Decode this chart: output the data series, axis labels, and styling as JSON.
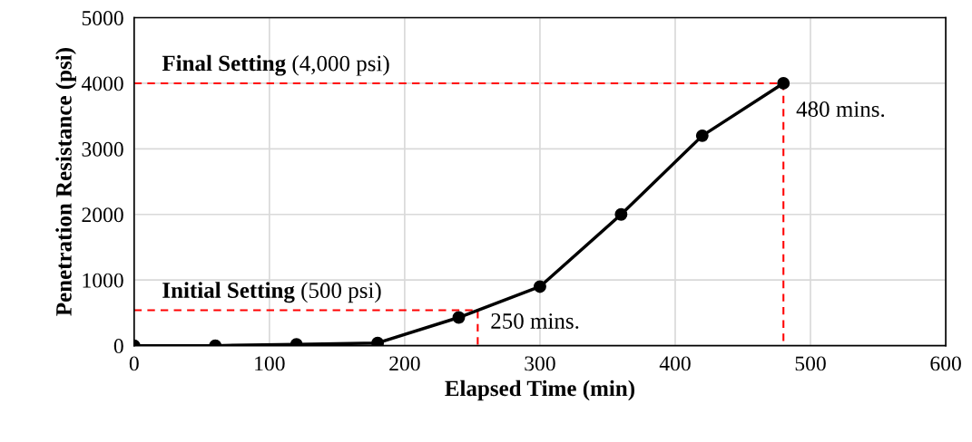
{
  "chart_data": {
    "type": "line",
    "xlabel": "Elapsed Time (min)",
    "ylabel": "Penetration Resistance (psi)",
    "x": [
      0,
      60,
      120,
      180,
      240,
      300,
      360,
      420,
      480
    ],
    "series": [
      {
        "color": "#000000",
        "values": [
          0,
          0,
          20,
          40,
          430,
          900,
          2000,
          3200,
          4000
        ],
        "marker": "circle",
        "line_style": "solid"
      },
      {
        "color": "#ff0000",
        "x": [
          0,
          254,
          254
        ],
        "values": [
          540,
          540,
          0
        ],
        "marker": "none",
        "line_style": "dashed"
      },
      {
        "color": "#ff0000",
        "x": [
          0,
          480,
          480
        ],
        "values": [
          4000,
          4000,
          0
        ],
        "marker": "none",
        "line_style": "dashed"
      }
    ],
    "annotations": [
      "Initial Setting (500 psi)",
      "Final Setting (4,000 psi)",
      "250 mins.",
      "480 mins."
    ],
    "xlim": [
      0,
      600
    ],
    "xticks": [
      0,
      100,
      200,
      300,
      400,
      500,
      600
    ],
    "ylim": [
      0,
      5000
    ],
    "yticks": [
      0,
      1000,
      2000,
      3000,
      4000,
      5000
    ],
    "grid": true
  }
}
